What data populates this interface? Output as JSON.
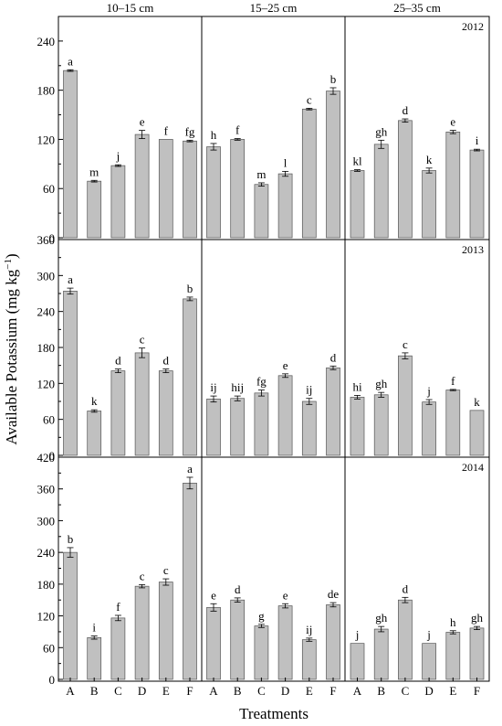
{
  "chart_data": {
    "type": "bar",
    "ylabel": "Available Potassium (mg kg",
    "ylabel_sup": "−1",
    "ylabel_close": ")",
    "xlabel": "Treatments",
    "categories": [
      "A",
      "B",
      "C",
      "D",
      "E",
      "F"
    ],
    "depths": [
      "10–15 cm",
      "15–25 cm",
      "25–35 cm"
    ],
    "bar_color": "#c0c0c0",
    "grid": false,
    "rows": [
      {
        "year": "2012",
        "ylim": [
          0,
          270
        ],
        "yticks": [
          "0",
          "60",
          "120",
          "180",
          "240"
        ],
        "ytick_values": [
          0,
          60,
          120,
          180,
          240
        ],
        "panels": [
          {
            "values": [
              204,
              69,
              88,
              126,
              120,
              118
            ],
            "errors": [
              1,
              1,
              1,
              5,
              0,
              1
            ],
            "labels": [
              "a",
              "m",
              "j",
              "e",
              "f",
              "fg"
            ]
          },
          {
            "values": [
              111,
              120,
              65,
              78,
              157,
              179
            ],
            "errors": [
              4,
              1,
              2,
              3,
              1,
              4
            ],
            "labels": [
              "h",
              "f",
              "m",
              "l",
              "c",
              "b"
            ]
          },
          {
            "values": [
              82,
              114,
              143,
              82,
              129,
              107
            ],
            "errors": [
              1,
              5,
              2,
              3,
              2,
              1
            ],
            "labels": [
              "kl",
              "gh",
              "d",
              "k",
              "e",
              "i"
            ]
          }
        ]
      },
      {
        "year": "2013",
        "ylim": [
          0,
          360
        ],
        "yticks": [
          "0",
          "60",
          "120",
          "180",
          "240",
          "300",
          "360"
        ],
        "ytick_values": [
          0,
          60,
          120,
          180,
          240,
          300,
          360
        ],
        "panels": [
          {
            "values": [
              274,
              74,
              141,
              171,
              141,
              261
            ],
            "errors": [
              5,
              2,
              3,
              8,
              3,
              3
            ],
            "labels": [
              "a",
              "k",
              "d",
              "c",
              "d",
              "b"
            ]
          },
          {
            "values": [
              94,
              95,
              104,
              133,
              90,
              146
            ],
            "errors": [
              5,
              4,
              5,
              3,
              5,
              3
            ],
            "labels": [
              "ij",
              "hij",
              "fg",
              "e",
              "ij",
              "d"
            ]
          },
          {
            "values": [
              97,
              101,
              166,
              89,
              109,
              75
            ],
            "errors": [
              3,
              4,
              5,
              4,
              1,
              0
            ],
            "labels": [
              "hi",
              "gh",
              "c",
              "j",
              "f",
              "k"
            ]
          }
        ]
      },
      {
        "year": "2014",
        "ylim": [
          0,
          420
        ],
        "yticks": [
          "0",
          "60",
          "120",
          "180",
          "240",
          "300",
          "360",
          "420"
        ],
        "ytick_values": [
          0,
          60,
          120,
          180,
          240,
          300,
          360,
          420
        ],
        "panels": [
          {
            "values": [
              240,
              79,
              116,
              176,
              184,
              371
            ],
            "errors": [
              9,
              3,
              5,
              3,
              6,
              11
            ],
            "labels": [
              "b",
              "i",
              "f",
              "c",
              "c",
              "a"
            ]
          },
          {
            "values": [
              136,
              150,
              101,
              139,
              75,
              141
            ],
            "errors": [
              7,
              4,
              3,
              4,
              3,
              4
            ],
            "labels": [
              "e",
              "d",
              "g",
              "e",
              "ij",
              "de"
            ]
          },
          {
            "values": [
              68,
              95,
              150,
              68,
              89,
              97
            ],
            "errors": [
              0,
              5,
              5,
              0,
              3,
              3
            ],
            "labels": [
              "j",
              "gh",
              "d",
              "j",
              "h",
              "gh"
            ]
          }
        ]
      }
    ]
  }
}
